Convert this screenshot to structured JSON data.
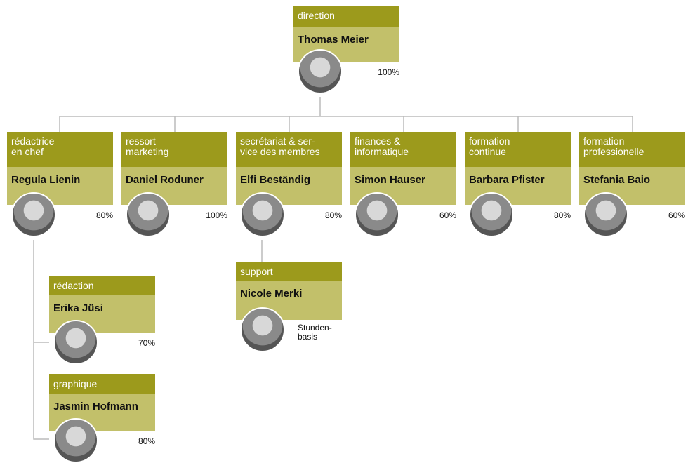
{
  "nodes": [
    {
      "role": [
        "direction"
      ],
      "name": "Thomas Meier",
      "workload": [
        "100%"
      ]
    },
    {
      "role": [
        "rédactrice",
        "en chef"
      ],
      "name": "Regula Lienin",
      "workload": [
        "80%"
      ]
    },
    {
      "role": [
        "ressort",
        "marketing"
      ],
      "name": "Daniel Roduner",
      "workload": [
        "100%"
      ]
    },
    {
      "role": [
        "secrétariat & ser-",
        "vice des membres"
      ],
      "name": "Elfi Beständig",
      "workload": [
        "80%"
      ]
    },
    {
      "role": [
        "finances &",
        "informatique"
      ],
      "name": "Simon Hauser",
      "workload": [
        "60%"
      ]
    },
    {
      "role": [
        "formation",
        "continue"
      ],
      "name": "Barbara Pfister",
      "workload": [
        "80%"
      ]
    },
    {
      "role": [
        "formation",
        "professionelle"
      ],
      "name": "Stefania Baio",
      "workload": [
        "60%"
      ]
    },
    {
      "role": [
        "support"
      ],
      "name": "Nicole Merki",
      "workload": [
        "Stunden-",
        "basis"
      ]
    },
    {
      "role": [
        "rédaction"
      ],
      "name": "Erika Jüsi",
      "workload": [
        "70%"
      ]
    },
    {
      "role": [
        "graphique"
      ],
      "name": "Jasmin Hofmann",
      "workload": [
        "80%"
      ]
    }
  ]
}
